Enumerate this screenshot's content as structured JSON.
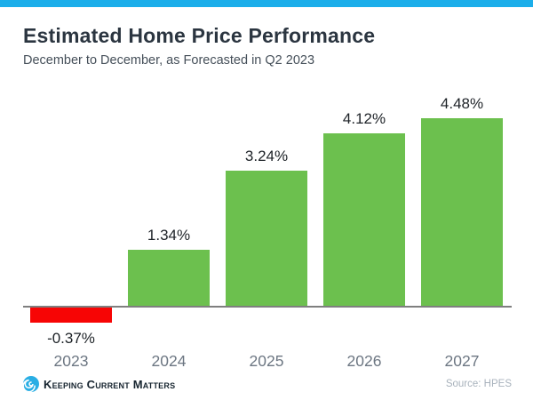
{
  "accent": {
    "topbar_color": "#1caeea"
  },
  "header": {
    "title": "Estimated Home Price Performance",
    "subtitle": "December to December, as Forecasted in Q2 2023"
  },
  "chart_data": {
    "type": "bar",
    "categories": [
      "2023",
      "2024",
      "2025",
      "2026",
      "2027"
    ],
    "values": [
      -0.37,
      1.34,
      3.24,
      4.12,
      4.48
    ],
    "labels": [
      "-0.37%",
      "1.34%",
      "3.24%",
      "4.12%",
      "4.48%"
    ],
    "title": "Estimated Home Price Performance",
    "subtitle": "December to December, as Forecasted in Q2 2023",
    "xlabel": "",
    "ylabel": "",
    "ylim": [
      -0.6,
      5.0
    ],
    "grid": false,
    "legend": false,
    "positive_color": "#6cc04e",
    "negative_color": "#f70505",
    "baseline_color": "#7f7f7f",
    "value_label_color": "#1d2227",
    "category_label_color": "#6c7682"
  },
  "footer": {
    "logo_text": "Keeping Current Matters",
    "source": "Source: HPES"
  }
}
